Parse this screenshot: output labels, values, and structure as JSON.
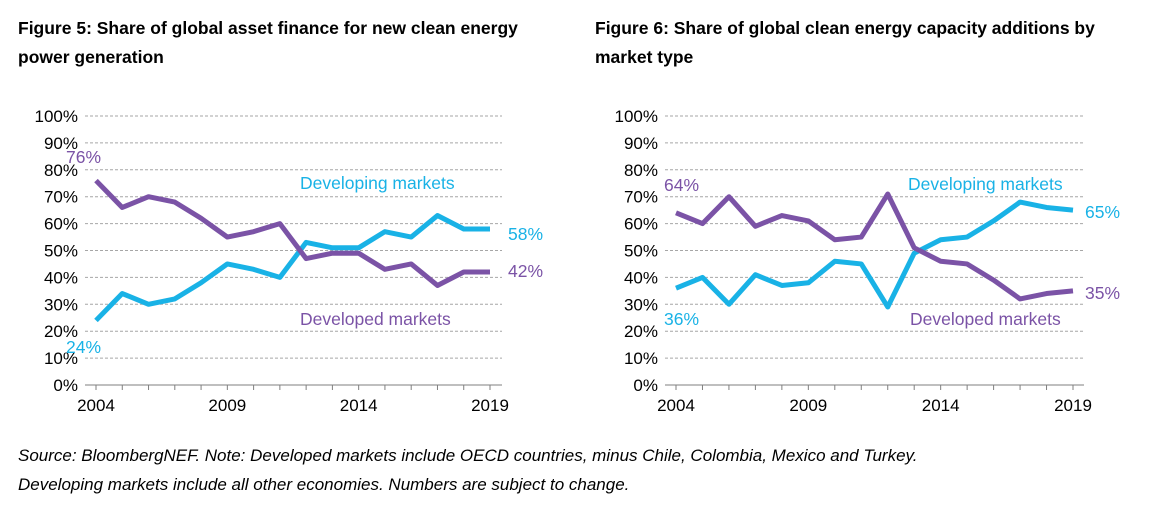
{
  "figures": [
    {
      "title_line1": "Figure 5: Share of global asset finance for new clean energy",
      "title_line2": "power generation"
    },
    {
      "title_line1": "Figure 6: Share of global clean energy capacity additions by",
      "title_line2": "market type"
    }
  ],
  "footer": {
    "line1": "Source: BloombergNEF. Note: Developed markets include OECD countries, minus Chile, Colombia, Mexico and Turkey.",
    "line2": "Developing markets include all other economies. Numbers are subject to change."
  },
  "colors": {
    "developing": "#19B2E6",
    "developed": "#7B53A6",
    "grid": "#A6A6A6",
    "axis": "#7F7F7F"
  },
  "chart_data": [
    {
      "type": "line",
      "title": "Figure 5: Share of global asset finance for new clean energy power generation",
      "x": [
        2004,
        2005,
        2006,
        2007,
        2008,
        2009,
        2010,
        2011,
        2012,
        2013,
        2014,
        2015,
        2016,
        2017,
        2018,
        2019
      ],
      "x_ticks": [
        "2004",
        "2009",
        "2014",
        "2019"
      ],
      "y_ticks": [
        "0%",
        "10%",
        "20%",
        "30%",
        "40%",
        "50%",
        "60%",
        "70%",
        "80%",
        "90%",
        "100%"
      ],
      "ylim": [
        0,
        100
      ],
      "grid": "horizontal-dashed",
      "series": [
        {
          "name": "Developing markets",
          "key": "developing",
          "values": [
            24,
            34,
            30,
            32,
            38,
            45,
            43,
            40,
            53,
            51,
            51,
            57,
            55,
            63,
            58,
            58
          ]
        },
        {
          "name": "Developed markets",
          "key": "developed",
          "values": [
            76,
            66,
            70,
            68,
            62,
            55,
            57,
            60,
            47,
            49,
            49,
            43,
            45,
            37,
            42,
            42
          ]
        }
      ],
      "annotations": [
        {
          "text": "76%",
          "series": "developed",
          "at": "start"
        },
        {
          "text": "24%",
          "series": "developing",
          "at": "start"
        },
        {
          "text": "58%",
          "series": "developing",
          "at": "end"
        },
        {
          "text": "42%",
          "series": "developed",
          "at": "end"
        }
      ]
    },
    {
      "type": "line",
      "title": "Figure 6: Share of global clean energy capacity additions by market type",
      "x": [
        2004,
        2005,
        2006,
        2007,
        2008,
        2009,
        2010,
        2011,
        2012,
        2013,
        2014,
        2015,
        2016,
        2017,
        2018,
        2019
      ],
      "x_ticks": [
        "2004",
        "2009",
        "2014",
        "2019"
      ],
      "y_ticks": [
        "0%",
        "10%",
        "20%",
        "30%",
        "40%",
        "50%",
        "60%",
        "70%",
        "80%",
        "90%",
        "100%"
      ],
      "ylim": [
        0,
        100
      ],
      "grid": "horizontal-dashed",
      "series": [
        {
          "name": "Developing markets",
          "key": "developing",
          "values": [
            36,
            40,
            30,
            41,
            37,
            38,
            46,
            45,
            29,
            49,
            54,
            55,
            61,
            68,
            66,
            65
          ]
        },
        {
          "name": "Developed markets",
          "key": "developed",
          "values": [
            64,
            60,
            70,
            59,
            63,
            61,
            54,
            55,
            71,
            51,
            46,
            45,
            39,
            32,
            34,
            35
          ]
        }
      ],
      "annotations": [
        {
          "text": "64%",
          "series": "developed",
          "at": "start"
        },
        {
          "text": "36%",
          "series": "developing",
          "at": "start"
        },
        {
          "text": "65%",
          "series": "developing",
          "at": "end"
        },
        {
          "text": "35%",
          "series": "developed",
          "at": "end"
        }
      ]
    }
  ]
}
